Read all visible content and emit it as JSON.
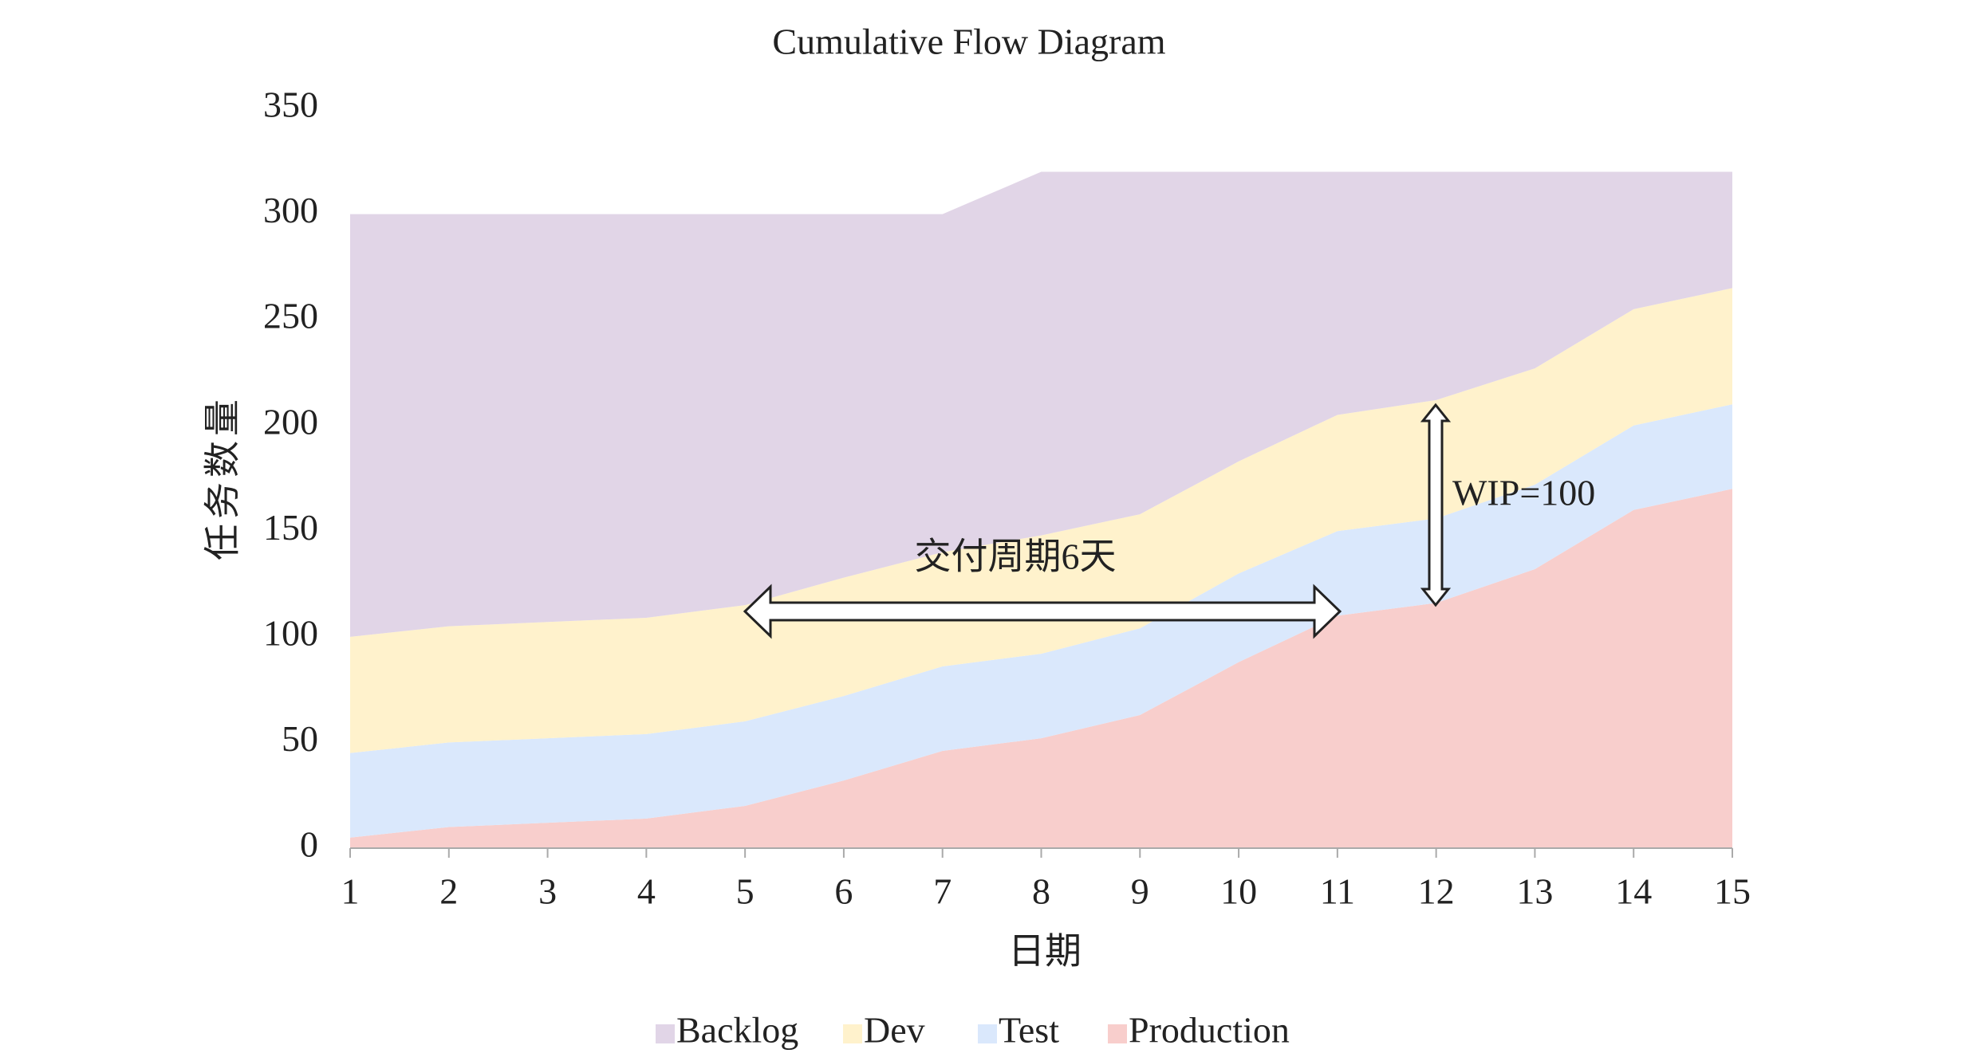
{
  "chart_data": {
    "type": "stacked_area",
    "title": "Cumulative Flow Diagram",
    "x_label": "日期",
    "y_label": "任务数量",
    "x": [
      1,
      2,
      3,
      4,
      5,
      6,
      7,
      8,
      9,
      10,
      11,
      12,
      13,
      14,
      15
    ],
    "xlim": [
      1,
      15
    ],
    "ylim": [
      0,
      350
    ],
    "yticks": [
      0,
      50,
      100,
      150,
      200,
      250,
      300,
      350
    ],
    "series": [
      {
        "name": "Backlog",
        "color": "#e1d5e7",
        "values": [
          200,
          195,
          193,
          191,
          185,
          172,
          160,
          172,
          162,
          137,
          115,
          108,
          93,
          65,
          55
        ]
      },
      {
        "name": "Dev",
        "color": "#fff2cc",
        "values": [
          55,
          55,
          55,
          55,
          55,
          56,
          54,
          56,
          54,
          53,
          55,
          56,
          55,
          55,
          55
        ]
      },
      {
        "name": "Test",
        "color": "#dae8fc",
        "values": [
          40,
          40,
          40,
          40,
          40,
          40,
          40,
          40,
          41,
          42,
          40,
          40,
          40,
          40,
          40
        ]
      },
      {
        "name": "Production",
        "color": "#f8cecc",
        "values": [
          5,
          10,
          12,
          14,
          20,
          32,
          46,
          52,
          63,
          88,
          110,
          116,
          132,
          160,
          170
        ]
      }
    ],
    "annotations": [
      "交付周期6天",
      "WIP=100"
    ],
    "legend": "bottom"
  }
}
